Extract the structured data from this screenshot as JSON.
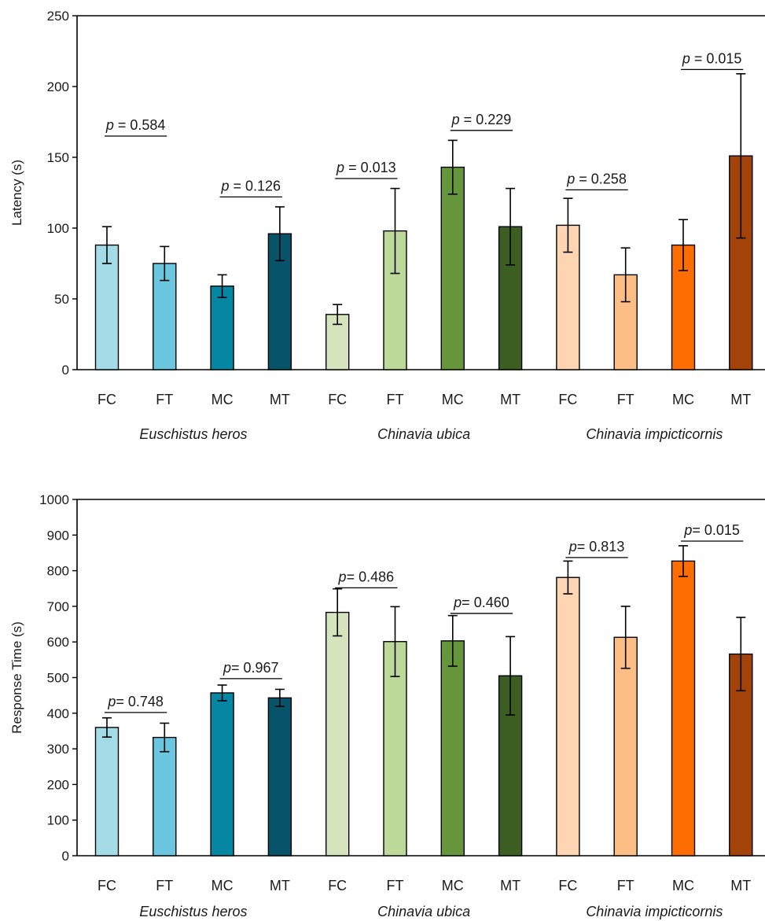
{
  "chart_data": [
    {
      "type": "bar",
      "ylabel": "Latency  (s)",
      "ylim": [
        0,
        250
      ],
      "yticks": [
        0,
        50,
        100,
        150,
        200,
        250
      ],
      "categories": [
        "FC",
        "FT",
        "MC",
        "MT",
        "FC",
        "FT",
        "MC",
        "MT",
        "FC",
        "FT",
        "MC",
        "MT"
      ],
      "groups": [
        {
          "label": "Euschistus heros",
          "start": 0,
          "end": 3
        },
        {
          "label": "Chinavia ubica",
          "start": 4,
          "end": 7
        },
        {
          "label": "Chinavia impicticornis",
          "start": 8,
          "end": 11
        }
      ],
      "values": [
        88,
        75,
        59,
        96,
        39,
        98,
        143,
        101,
        102,
        67,
        88,
        151
      ],
      "errors": [
        13,
        12,
        8,
        19,
        7,
        30,
        19,
        27,
        19,
        19,
        18,
        58
      ],
      "colors": [
        "#a3dbe6",
        "#6bc6df",
        "#0587a4",
        "#07546a",
        "#d6e4bd",
        "#bcd99a",
        "#65963b",
        "#3d5e22",
        "#fed5b3",
        "#fdbe86",
        "#fd6d01",
        "#a34309"
      ],
      "annotations": [
        {
          "text": "0.584",
          "prefix": "p",
          "sep": " = ",
          "from": 0,
          "to": 1,
          "y": 165
        },
        {
          "text": "0.126",
          "prefix": "p",
          "sep": " = ",
          "from": 2,
          "to": 3,
          "y": 122
        },
        {
          "text": "0.013",
          "prefix": "p",
          "sep": " = ",
          "from": 4,
          "to": 5,
          "y": 135
        },
        {
          "text": "0.229",
          "prefix": "p",
          "sep": " = ",
          "from": 6,
          "to": 7,
          "y": 169
        },
        {
          "text": "0.258",
          "prefix": "p",
          "sep": " = ",
          "from": 8,
          "to": 9,
          "y": 127
        },
        {
          "text": "0.015",
          "prefix": "p",
          "sep": " = ",
          "from": 10,
          "to": 11,
          "y": 212
        }
      ]
    },
    {
      "type": "bar",
      "ylabel": "Response  Time (s)",
      "ylim": [
        0,
        1000
      ],
      "yticks": [
        0,
        100,
        200,
        300,
        400,
        500,
        600,
        700,
        800,
        900,
        1000
      ],
      "categories": [
        "FC",
        "FT",
        "MC",
        "MT",
        "FC",
        "FT",
        "MC",
        "MT",
        "FC",
        "FT",
        "MC",
        "MT"
      ],
      "groups": [
        {
          "label": "Euschistus heros",
          "start": 0,
          "end": 3
        },
        {
          "label": "Chinavia ubica",
          "start": 4,
          "end": 7
        },
        {
          "label": "Chinavia impicticornis",
          "start": 8,
          "end": 11
        }
      ],
      "values": [
        360,
        332,
        457,
        443,
        683,
        601,
        603,
        505,
        781,
        613,
        827,
        566
      ],
      "errors": [
        27,
        40,
        22,
        24,
        66,
        98,
        71,
        110,
        46,
        87,
        43,
        103
      ],
      "colors": [
        "#a3dbe6",
        "#6bc6df",
        "#0587a4",
        "#07546a",
        "#d6e4bd",
        "#bcd99a",
        "#65963b",
        "#3d5e22",
        "#fed5b3",
        "#fdbe86",
        "#fd6d01",
        "#a34309"
      ],
      "annotations": [
        {
          "text": "0.748",
          "prefix": "p",
          "sep": "= ",
          "from": 0,
          "to": 1,
          "y": 402
        },
        {
          "text": "0.967",
          "prefix": "p",
          "sep": "= ",
          "from": 2,
          "to": 3,
          "y": 497
        },
        {
          "text": "0.486",
          "prefix": "p",
          "sep": "= ",
          "from": 4,
          "to": 5,
          "y": 752
        },
        {
          "text": "0.460",
          "prefix": "p",
          "sep": "= ",
          "from": 6,
          "to": 7,
          "y": 680
        },
        {
          "text": "0.813",
          "prefix": "p",
          "sep": "= ",
          "from": 8,
          "to": 9,
          "y": 837
        },
        {
          "text": "0.015",
          "prefix": "p",
          "sep": "= ",
          "from": 10,
          "to": 11,
          "y": 883
        }
      ]
    }
  ]
}
